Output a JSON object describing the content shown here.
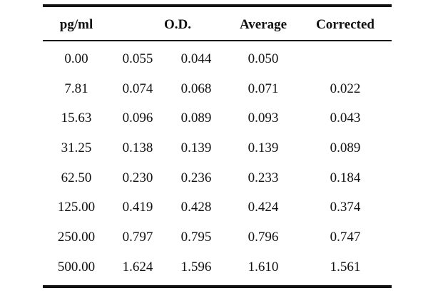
{
  "table": {
    "headers": {
      "concentration": "pg/ml",
      "od": "O.D.",
      "average": "Average",
      "corrected": "Corrected"
    },
    "rows": [
      {
        "concentration": "0.00",
        "od1": "0.055",
        "od2": "0.044",
        "average": "0.050",
        "corrected": ""
      },
      {
        "concentration": "7.81",
        "od1": "0.074",
        "od2": "0.068",
        "average": "0.071",
        "corrected": "0.022"
      },
      {
        "concentration": "15.63",
        "od1": "0.096",
        "od2": "0.089",
        "average": "0.093",
        "corrected": "0.043"
      },
      {
        "concentration": "31.25",
        "od1": "0.138",
        "od2": "0.139",
        "average": "0.139",
        "corrected": "0.089"
      },
      {
        "concentration": "62.50",
        "od1": "0.230",
        "od2": "0.236",
        "average": "0.233",
        "corrected": "0.184"
      },
      {
        "concentration": "125.00",
        "od1": "0.419",
        "od2": "0.428",
        "average": "0.424",
        "corrected": "0.374"
      },
      {
        "concentration": "250.00",
        "od1": "0.797",
        "od2": "0.795",
        "average": "0.796",
        "corrected": "0.747"
      },
      {
        "concentration": "500.00",
        "od1": "1.624",
        "od2": "1.596",
        "average": "1.610",
        "corrected": "1.561"
      }
    ]
  }
}
